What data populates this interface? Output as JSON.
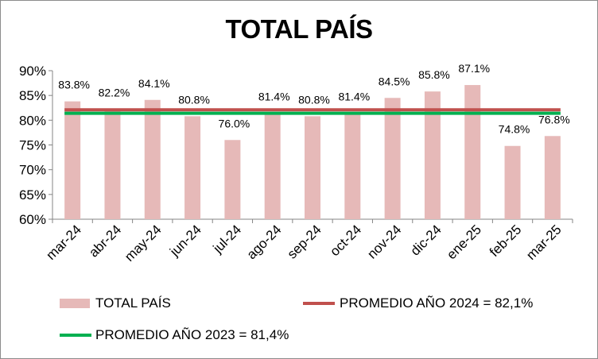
{
  "chart_data": {
    "type": "bar",
    "title": "TOTAL PAÍS",
    "categories": [
      "mar-24",
      "abr-24",
      "may-24",
      "jun-24",
      "jul-24",
      "ago-24",
      "sep-24",
      "oct-24",
      "nov-24",
      "dic-24",
      "ene-25",
      "feb-25",
      "mar-25"
    ],
    "series": [
      {
        "name": "TOTAL PAÍS",
        "values": [
          83.8,
          82.2,
          84.1,
          80.8,
          76.0,
          81.4,
          80.8,
          81.4,
          84.5,
          85.8,
          87.1,
          74.8,
          76.8
        ],
        "color": "#e6b9b8"
      }
    ],
    "data_labels": [
      "83.8%",
      "82.2%",
      "84.1%",
      "80.8%",
      "76.0%",
      "81.4%",
      "80.8%",
      "81.4%",
      "84.5%",
      "85.8%",
      "87.1%",
      "74.8%",
      "76.8%"
    ],
    "reference_lines": [
      {
        "name": "PROMEDIO AÑO 2024 = 82,1%",
        "value": 82.1,
        "color": "#c0504d"
      },
      {
        "name": "PROMEDIO AÑO 2023 = 81,4%",
        "value": 81.4,
        "color": "#00b050"
      }
    ],
    "ylim": [
      60,
      90
    ],
    "yticks": [
      "60%",
      "65%",
      "70%",
      "75%",
      "80%",
      "85%",
      "90%"
    ],
    "grid": false,
    "legend_position": "bottom"
  }
}
